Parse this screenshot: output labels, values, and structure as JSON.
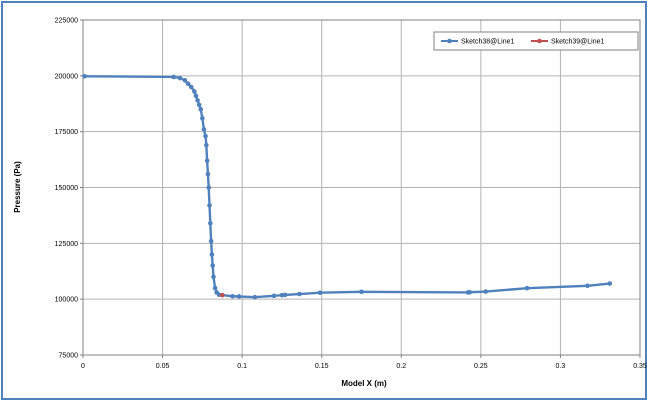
{
  "chart_data": {
    "type": "scatter",
    "xlabel": "Model X (m)",
    "ylabel": "Pressure (Pa)",
    "xlim": [
      0,
      0.35
    ],
    "ylim": [
      75000,
      225000
    ],
    "x_ticks": [
      "0",
      "0.05",
      "0.1",
      "0.15",
      "0.2",
      "0.25",
      "0.3",
      "0.35"
    ],
    "y_ticks": [
      "75000",
      "100000",
      "125000",
      "150000",
      "175000",
      "200000",
      "225000"
    ],
    "grid": true,
    "legend_position": "top-right",
    "series": [
      {
        "name": "Sketch38@Line1",
        "color": "#4f81bd",
        "marker": "circle",
        "x": [
          0.001,
          0.057,
          0.061,
          0.064,
          0.066,
          0.068,
          0.07,
          0.071,
          0.072,
          0.073,
          0.074,
          0.075,
          0.076,
          0.077,
          0.0775,
          0.078,
          0.0785,
          0.079,
          0.0795,
          0.08,
          0.0805,
          0.081,
          0.0815,
          0.082,
          0.083,
          0.084,
          0.0855,
          0.094,
          0.098,
          0.108,
          0.12,
          0.125,
          0.127,
          0.136,
          0.149,
          0.175,
          0.242,
          0.243,
          0.253,
          0.279,
          0.317,
          0.331
        ],
        "y": [
          199800,
          199500,
          199000,
          198000,
          196500,
          195000,
          193000,
          191000,
          189000,
          187000,
          185000,
          181000,
          176000,
          173000,
          169000,
          162000,
          156000,
          150000,
          142000,
          134000,
          126000,
          120000,
          115000,
          110000,
          105000,
          103000,
          102000,
          101300,
          101200,
          100900,
          101500,
          101800,
          101900,
          102300,
          102900,
          103300,
          103000,
          103100,
          103400,
          104900,
          106000,
          107000
        ]
      },
      {
        "name": "Sketch39@Line1",
        "color": "#c0504d",
        "marker": "circle",
        "x": [
          0.0875
        ],
        "y": [
          101800
        ]
      }
    ]
  }
}
